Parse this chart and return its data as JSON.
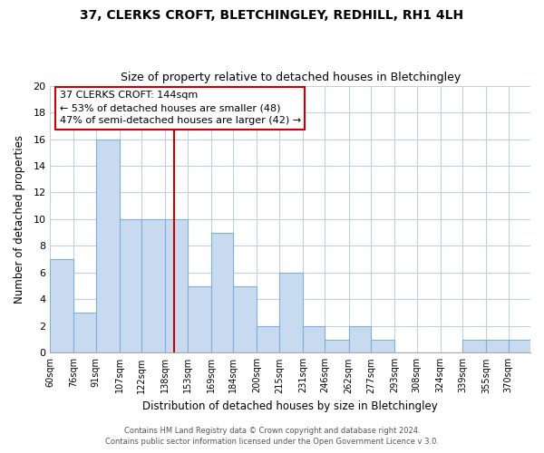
{
  "title": "37, CLERKS CROFT, BLETCHINGLEY, REDHILL, RH1 4LH",
  "subtitle": "Size of property relative to detached houses in Bletchingley",
  "xlabel": "Distribution of detached houses by size in Bletchingley",
  "ylabel": "Number of detached properties",
  "bar_color": "#c8daf0",
  "bar_edge_color": "#7fb0d8",
  "bin_labels": [
    "60sqm",
    "76sqm",
    "91sqm",
    "107sqm",
    "122sqm",
    "138sqm",
    "153sqm",
    "169sqm",
    "184sqm",
    "200sqm",
    "215sqm",
    "231sqm",
    "246sqm",
    "262sqm",
    "277sqm",
    "293sqm",
    "308sqm",
    "324sqm",
    "339sqm",
    "355sqm",
    "370sqm"
  ],
  "bar_heights": [
    7,
    3,
    16,
    10,
    10,
    10,
    5,
    9,
    5,
    2,
    6,
    2,
    1,
    2,
    1,
    0,
    0,
    0,
    1,
    1,
    1
  ],
  "ylim": [
    0,
    20
  ],
  "yticks": [
    0,
    2,
    4,
    6,
    8,
    10,
    12,
    14,
    16,
    18,
    20
  ],
  "property_line_x": 144,
  "property_line_label": "37 CLERKS CROFT: 144sqm",
  "annotation_line1": "← 53% of detached houses are smaller (48)",
  "annotation_line2": "47% of semi-detached houses are larger (42) →",
  "annotation_box_color": "#ffffff",
  "annotation_box_edge": "#cc0000",
  "red_line_color": "#cc0000",
  "footer1": "Contains HM Land Registry data © Crown copyright and database right 2024.",
  "footer2": "Contains public sector information licensed under the Open Government Licence v 3.0.",
  "bin_edges": [
    60,
    76,
    91,
    107,
    122,
    138,
    153,
    169,
    184,
    200,
    215,
    231,
    246,
    262,
    277,
    293,
    308,
    324,
    339,
    355,
    370,
    385
  ]
}
